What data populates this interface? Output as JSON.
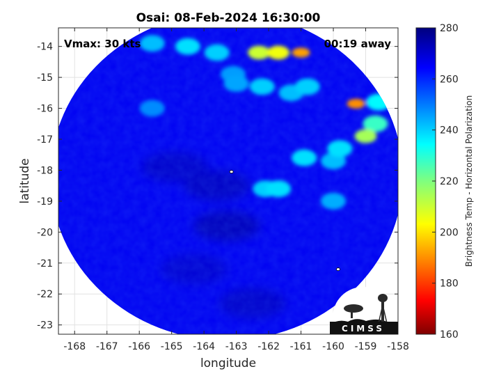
{
  "chart_data": {
    "type": "heatmap",
    "title": "Osai: 08-Feb-2024 16:30:00",
    "xlabel": "longitude",
    "ylabel": "latitude",
    "xlim": [
      -168.5,
      -158
    ],
    "ylim": [
      -23.3,
      -13.4
    ],
    "x_ticks": [
      -168,
      -167,
      -166,
      -165,
      -164,
      -163,
      -162,
      -161,
      -160,
      -159,
      -158
    ],
    "y_ticks": [
      -14,
      -15,
      -16,
      -17,
      -18,
      -19,
      -20,
      -21,
      -22,
      -23
    ],
    "grid": true,
    "annotations": {
      "vmax": "Vmax: 30 kts",
      "time_away": "00:19 away"
    },
    "colorbar": {
      "label": "Brightness Temp - Horizontal Polarization",
      "range": [
        160,
        280
      ],
      "ticks": [
        280,
        260,
        240,
        220,
        200,
        180,
        160
      ],
      "colormap": "jet"
    },
    "swath": {
      "center": [
        -163.3,
        -18.2
      ],
      "radius_deg_lon": 5.45,
      "radius_deg_lat": 5.3,
      "background_value": 266
    },
    "cold_features": [
      {
        "lon": -159.3,
        "lat": -15.85,
        "value": 190
      },
      {
        "lon": -161.0,
        "lat": -14.2,
        "value": 192
      },
      {
        "lon": -161.7,
        "lat": -14.2,
        "value": 205
      },
      {
        "lon": -162.3,
        "lat": -14.2,
        "value": 210
      },
      {
        "lon": -159.0,
        "lat": -16.9,
        "value": 215
      },
      {
        "lon": -158.7,
        "lat": -16.5,
        "value": 228
      },
      {
        "lon": -158.6,
        "lat": -15.8,
        "value": 235
      },
      {
        "lon": -159.8,
        "lat": -17.3,
        "value": 238
      },
      {
        "lon": -160.0,
        "lat": -17.7,
        "value": 242
      },
      {
        "lon": -160.8,
        "lat": -15.3,
        "value": 240
      },
      {
        "lon": -161.3,
        "lat": -15.5,
        "value": 242
      },
      {
        "lon": -162.2,
        "lat": -15.3,
        "value": 240
      },
      {
        "lon": -163.0,
        "lat": -15.2,
        "value": 245
      },
      {
        "lon": -163.6,
        "lat": -14.2,
        "value": 240
      },
      {
        "lon": -164.5,
        "lat": -14.0,
        "value": 238
      },
      {
        "lon": -165.6,
        "lat": -13.9,
        "value": 242
      },
      {
        "lon": -162.1,
        "lat": -18.6,
        "value": 240
      },
      {
        "lon": -161.7,
        "lat": -18.6,
        "value": 238
      },
      {
        "lon": -160.9,
        "lat": -17.6,
        "value": 238
      },
      {
        "lon": -160.0,
        "lat": -19.0,
        "value": 244
      },
      {
        "lon": -165.6,
        "lat": -16.0,
        "value": 248
      },
      {
        "lon": -163.1,
        "lat": -14.9,
        "value": 246
      }
    ],
    "dark_features": [
      {
        "lon": -163.6,
        "lat": -18.5,
        "value": 272
      },
      {
        "lon": -163.3,
        "lat": -19.8,
        "value": 273
      },
      {
        "lon": -164.9,
        "lat": -17.9,
        "value": 271
      },
      {
        "lon": -162.5,
        "lat": -22.3,
        "value": 271
      },
      {
        "lon": -164.3,
        "lat": -21.2,
        "value": 270
      }
    ],
    "markers": [
      {
        "lon": -163.15,
        "lat": -18.05,
        "shape": "small-island"
      },
      {
        "lon": -159.85,
        "lat": -21.2,
        "shape": "small-island"
      }
    ]
  },
  "logo": {
    "text": "CIMSS",
    "name": "cimss-logo"
  }
}
